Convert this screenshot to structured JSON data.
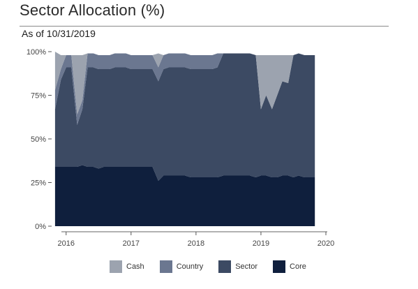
{
  "title": "Sector Allocation (%)",
  "subtitle": "As of 10/31/2019",
  "colors": {
    "cash": "#9ca3af",
    "country": "#6b7790",
    "sector": "#3c4a63",
    "core": "#0f1f3d"
  },
  "chart_data": {
    "type": "area",
    "stacked": true,
    "x_ticks": [
      2016,
      2017,
      2018,
      2019,
      2020
    ],
    "x_tick_labels": [
      "2016",
      "2017",
      "2018",
      "2019",
      "2020"
    ],
    "xlim": [
      2015.82,
      2020.0
    ],
    "ylim": [
      0,
      100
    ],
    "y_ticks": [
      0,
      25,
      50,
      75,
      100
    ],
    "y_tick_labels": [
      "0%",
      "25%",
      "50%",
      "75%",
      "100%"
    ],
    "grid": false,
    "legend_position": "bottom",
    "x": [
      2015.83,
      2015.92,
      2016.0,
      2016.08,
      2016.17,
      2016.25,
      2016.33,
      2016.42,
      2016.5,
      2016.58,
      2016.67,
      2016.75,
      2016.83,
      2016.92,
      2017.0,
      2017.08,
      2017.17,
      2017.25,
      2017.33,
      2017.42,
      2017.5,
      2017.58,
      2017.67,
      2017.75,
      2017.83,
      2017.92,
      2018.0,
      2018.08,
      2018.17,
      2018.25,
      2018.33,
      2018.42,
      2018.5,
      2018.58,
      2018.67,
      2018.75,
      2018.83,
      2018.92,
      2019.0,
      2019.08,
      2019.17,
      2019.25,
      2019.33,
      2019.42,
      2019.5,
      2019.58,
      2019.67,
      2019.75,
      2019.83
    ],
    "series": [
      {
        "name": "Core",
        "values": [
          34,
          34,
          34,
          34,
          34,
          35,
          34,
          34,
          33,
          34,
          34,
          34,
          34,
          34,
          34,
          34,
          34,
          34,
          34,
          26,
          29,
          29,
          29,
          29,
          29,
          28,
          28,
          28,
          28,
          28,
          28,
          29,
          29,
          29,
          29,
          29,
          29,
          28,
          29,
          29,
          28,
          28,
          29,
          29,
          28,
          29,
          28,
          28,
          28
        ]
      },
      {
        "name": "Sector",
        "values": [
          33,
          50,
          57,
          57,
          24,
          32,
          57,
          57,
          57,
          56,
          56,
          57,
          57,
          57,
          56,
          56,
          56,
          56,
          56,
          57,
          61,
          62,
          62,
          62,
          62,
          62,
          62,
          62,
          62,
          62,
          63,
          70,
          70,
          70,
          70,
          70,
          70,
          70,
          38,
          46,
          39,
          47,
          54,
          53,
          70,
          70,
          70,
          70,
          70
        ]
      },
      {
        "name": "Country",
        "values": [
          11,
          6,
          7,
          7,
          6,
          5,
          8,
          8,
          8,
          8,
          8,
          8,
          8,
          8,
          8,
          8,
          8,
          8,
          8,
          8,
          8,
          8,
          8,
          8,
          8,
          8,
          8,
          8,
          8,
          8,
          8,
          0,
          0,
          0,
          0,
          0,
          0,
          0,
          0,
          0,
          0,
          0,
          0,
          0,
          0,
          0,
          0,
          0,
          0
        ]
      },
      {
        "name": "Cash",
        "values": [
          22,
          8,
          0,
          0,
          34,
          26,
          0,
          0,
          0,
          0,
          0,
          0,
          0,
          0,
          0,
          0,
          0,
          0,
          0,
          8,
          0,
          0,
          0,
          0,
          0,
          0,
          0,
          0,
          0,
          0,
          0,
          0,
          0,
          0,
          0,
          0,
          0,
          0,
          31,
          23,
          31,
          23,
          15,
          16,
          0,
          0,
          0,
          0,
          0
        ]
      }
    ],
    "legend": [
      "Cash",
      "Country",
      "Sector",
      "Core"
    ]
  }
}
